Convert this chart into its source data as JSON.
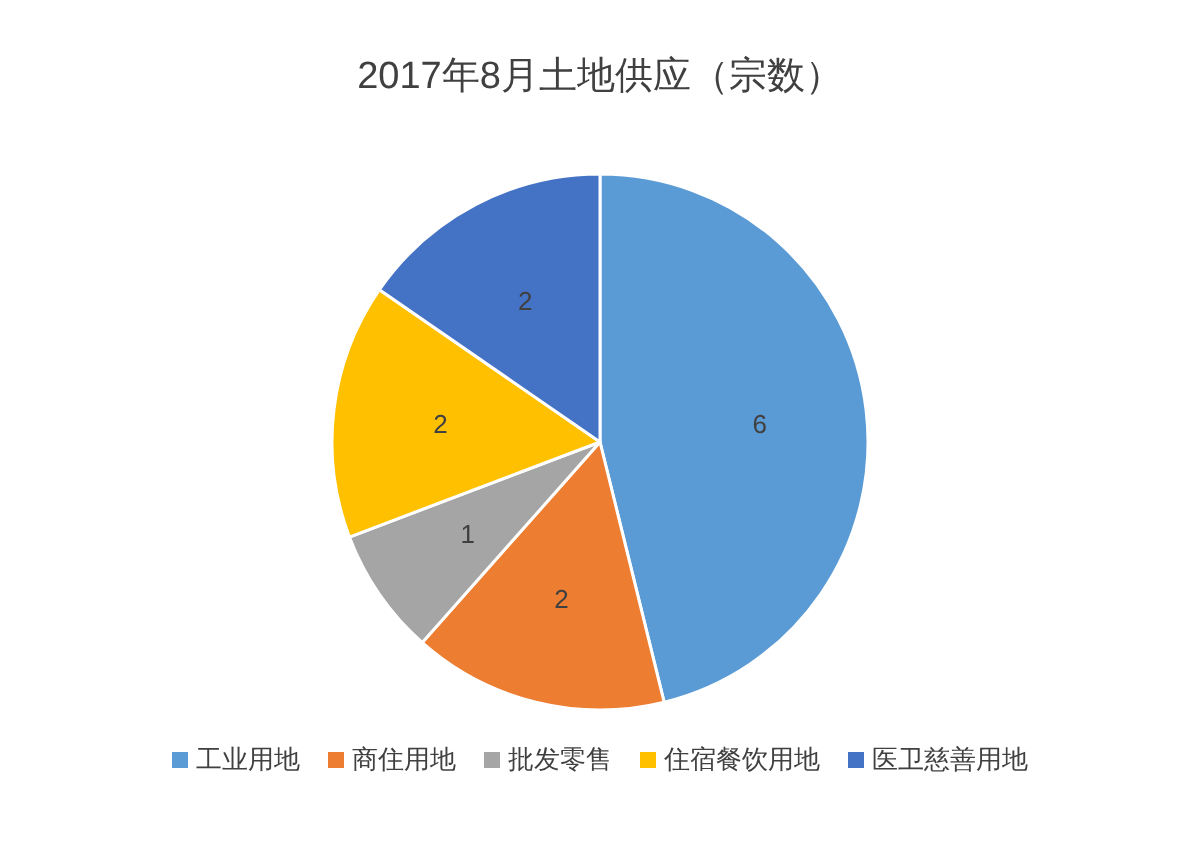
{
  "chart_data": {
    "type": "pie",
    "title": "2017年8月土地供应（宗数）",
    "categories": [
      "工业用地",
      "商住用地",
      "批发零售",
      "住宿餐饮用地",
      "医卫慈善用地"
    ],
    "values": [
      6,
      2,
      1,
      2,
      2
    ],
    "colors": [
      "#5b9bd5",
      "#ed7d31",
      "#a5a5a5",
      "#ffc000",
      "#4472c4"
    ],
    "data_labels": true,
    "legend": "bottom"
  }
}
